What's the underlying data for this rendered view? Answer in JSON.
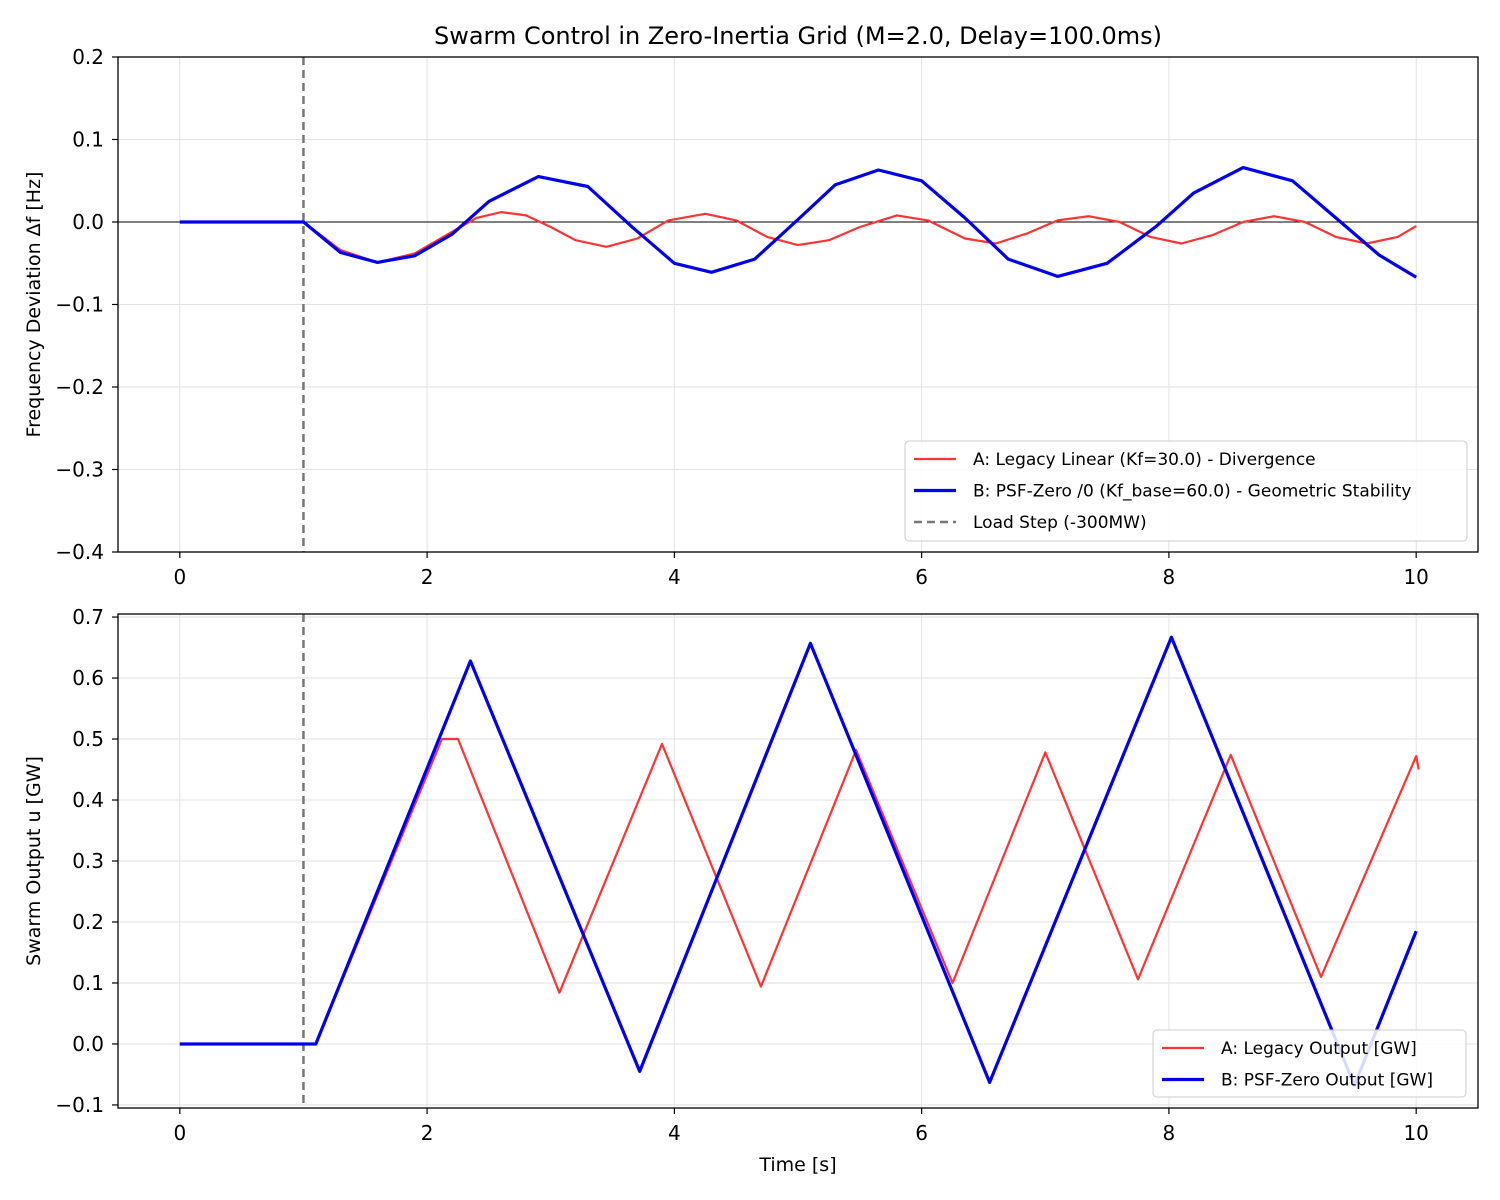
{
  "chart_data": [
    {
      "type": "line",
      "title": "Swarm Control in Zero-Inertia Grid (M=2.0, Delay=100.0ms)",
      "xlabel": "",
      "ylabel": "Frequency Deviation Δf [Hz]",
      "xlim": [
        -0.5,
        10.5
      ],
      "ylim": [
        -0.4,
        0.2
      ],
      "xticks": [
        "0",
        "2",
        "4",
        "6",
        "8",
        "10"
      ],
      "yticks": [
        "0.2",
        "0.1",
        "0.0",
        "−0.1",
        "−0.2",
        "−0.3",
        "−0.4"
      ],
      "grid": true,
      "legend_position": "lower-right",
      "zero_line": true,
      "vertical_marker": {
        "x": 1.0,
        "name": "Load Step (-300MW)",
        "color": "#777777",
        "style": "dashed"
      },
      "series": [
        {
          "name": "A: Legacy Linear (Kf=30.0) - Divergence",
          "color": "#ff3333",
          "x": [
            0,
            1.0,
            1.3,
            1.6,
            1.9,
            2.2,
            2.4,
            2.6,
            2.8,
            3.0,
            3.2,
            3.45,
            3.7,
            3.95,
            4.25,
            4.5,
            4.75,
            5.0,
            5.25,
            5.5,
            5.8,
            6.05,
            6.35,
            6.6,
            6.85,
            7.1,
            7.35,
            7.6,
            7.85,
            8.1,
            8.35,
            8.6,
            8.85,
            9.1,
            9.35,
            9.6,
            9.85,
            10.0
          ],
          "y": [
            0,
            0,
            -0.034,
            -0.049,
            -0.038,
            -0.012,
            0.005,
            0.012,
            0.008,
            -0.006,
            -0.022,
            -0.03,
            -0.02,
            0.002,
            0.01,
            0.002,
            -0.018,
            -0.028,
            -0.022,
            -0.006,
            0.008,
            0.002,
            -0.02,
            -0.026,
            -0.014,
            0.002,
            0.007,
            0.0,
            -0.018,
            -0.026,
            -0.016,
            0.0,
            0.007,
            0.0,
            -0.018,
            -0.026,
            -0.018,
            -0.005
          ]
        },
        {
          "name": "B: PSF-Zero /0 (Kf_base=60.0) - Geometric Stability",
          "color": "#0000ee",
          "x": [
            0,
            1.0,
            1.3,
            1.6,
            1.9,
            2.2,
            2.5,
            2.9,
            3.3,
            3.65,
            4.0,
            4.3,
            4.65,
            5.0,
            5.3,
            5.65,
            6.0,
            6.35,
            6.7,
            7.1,
            7.5,
            7.9,
            8.2,
            8.6,
            9.0,
            9.35,
            9.7,
            10.0
          ],
          "y": [
            0,
            0,
            -0.037,
            -0.049,
            -0.041,
            -0.015,
            0.025,
            0.055,
            0.043,
            -0.005,
            -0.05,
            -0.061,
            -0.045,
            0.003,
            0.045,
            0.063,
            0.05,
            0.005,
            -0.045,
            -0.066,
            -0.05,
            -0.005,
            0.035,
            0.066,
            0.05,
            0.005,
            -0.04,
            -0.067
          ]
        }
      ]
    },
    {
      "type": "line",
      "title": "",
      "xlabel": "Time [s]",
      "ylabel": "Swarm Output u [GW]",
      "xlim": [
        -0.5,
        10.5
      ],
      "ylim": [
        -0.105,
        0.705
      ],
      "xticks": [
        "0",
        "2",
        "4",
        "6",
        "8",
        "10"
      ],
      "yticks": [
        "0.7",
        "0.6",
        "0.5",
        "0.4",
        "0.3",
        "0.2",
        "0.1",
        "0.0",
        "−0.1"
      ],
      "grid": true,
      "legend_position": "lower-right",
      "vertical_marker": {
        "x": 1.0,
        "color": "#777777",
        "style": "dashed"
      },
      "series": [
        {
          "name": "A: Legacy Output [GW]",
          "color": "#ff3333",
          "x": [
            0,
            1.1,
            2.12,
            2.25,
            3.07,
            3.9,
            4.7,
            5.47,
            6.25,
            7.0,
            7.75,
            8.5,
            9.23,
            10.0,
            10.02
          ],
          "y": [
            0,
            0,
            0.5,
            0.5,
            0.084,
            0.492,
            0.094,
            0.482,
            0.1,
            0.478,
            0.106,
            0.474,
            0.11,
            0.472,
            0.45
          ]
        },
        {
          "name": "B: PSF-Zero Output [GW]",
          "color": "#0000ee",
          "x": [
            0,
            1.1,
            2.35,
            3.72,
            5.1,
            6.55,
            8.02,
            9.5,
            10.0
          ],
          "y": [
            0,
            0,
            0.628,
            -0.045,
            0.657,
            -0.063,
            0.667,
            -0.068,
            0.185
          ]
        }
      ]
    }
  ]
}
